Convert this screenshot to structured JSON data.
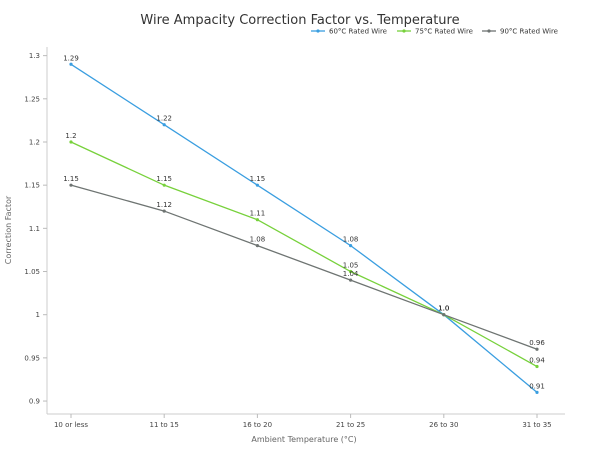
{
  "chart_data": {
    "type": "line",
    "title": "Wire Ampacity Correction Factor vs. Temperature",
    "xlabel": "Ambient Temperature (°C)",
    "ylabel": "Correction Factor",
    "categories": [
      "10 or less",
      "11 to 15",
      "16 to 20",
      "21 to 25",
      "26 to 30",
      "31 to 35"
    ],
    "ylim": [
      0.885,
      1.31
    ],
    "yticks": [
      {
        "value": 0.9,
        "label": "0.9"
      },
      {
        "value": 0.95,
        "label": "0.95"
      },
      {
        "value": 1.0,
        "label": "1"
      },
      {
        "value": 1.05,
        "label": "1.05"
      },
      {
        "value": 1.1,
        "label": "1.1"
      },
      {
        "value": 1.15,
        "label": "1.15"
      },
      {
        "value": 1.2,
        "label": "1.2"
      },
      {
        "value": 1.25,
        "label": "1.25"
      },
      {
        "value": 1.3,
        "label": "1.3"
      }
    ],
    "grid": false,
    "legend_position": "top-right",
    "series": [
      {
        "name": "60°C Rated Wire",
        "color": "#3a9ee0",
        "values": [
          1.29,
          1.22,
          1.15,
          1.08,
          1.0,
          0.91
        ],
        "labels": [
          "1.29",
          "1.22",
          "1.15",
          "1.08",
          "1.0",
          "0.91"
        ]
      },
      {
        "name": "75°C Rated Wire",
        "color": "#77d13b",
        "values": [
          1.2,
          1.15,
          1.11,
          1.05,
          1.0,
          0.94
        ],
        "labels": [
          "1.2",
          "1.15",
          "1.11",
          "1.05",
          "1.0",
          "0.94"
        ]
      },
      {
        "name": "90°C Rated Wire",
        "color": "#6e7472",
        "values": [
          1.15,
          1.12,
          1.08,
          1.04,
          1.0,
          0.96
        ],
        "labels": [
          "1.15",
          "1.12",
          "1.08",
          "1.04",
          "1.0",
          "0.96"
        ]
      }
    ]
  }
}
